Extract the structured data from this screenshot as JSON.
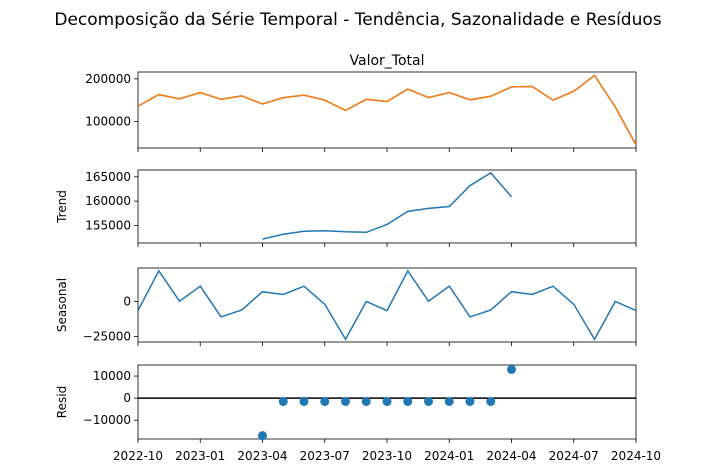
{
  "figure": {
    "title": "Decomposição da Série Temporal - Tendência, Sazonalidade e Resíduos"
  },
  "colors": {
    "observed_line": "#ff7f0e",
    "observed_line_under": "#1f77b4",
    "series": "#1f77b4",
    "zero_line": "#000000",
    "axes": "#000000"
  },
  "chart_data": [
    {
      "type": "line",
      "panel": "observed",
      "title": "Valor_Total",
      "ylabel": "",
      "x": [
        "2022-10",
        "2022-11",
        "2022-12",
        "2023-01",
        "2023-02",
        "2023-03",
        "2023-04",
        "2023-05",
        "2023-06",
        "2023-07",
        "2023-08",
        "2023-09",
        "2023-10",
        "2023-11",
        "2023-12",
        "2024-01",
        "2024-02",
        "2024-03",
        "2024-04",
        "2024-05",
        "2024-06",
        "2024-07",
        "2024-08",
        "2024-09",
        "2024-10"
      ],
      "values": [
        136000,
        163000,
        153000,
        168000,
        152000,
        160000,
        141000,
        156000,
        162000,
        150000,
        126000,
        152000,
        147000,
        176000,
        156000,
        168000,
        151000,
        159000,
        181000,
        182000,
        150000,
        171000,
        208000,
        134000,
        45000
      ],
      "ylim": [
        38000,
        216000
      ],
      "yticks": [
        100000,
        200000
      ],
      "ytick_labels": [
        "100000",
        "200000"
      ]
    },
    {
      "type": "line",
      "panel": "trend",
      "title": "",
      "ylabel": "Trend",
      "x": [
        "2023-04",
        "2023-05",
        "2023-06",
        "2023-07",
        "2023-08",
        "2023-09",
        "2023-10",
        "2023-11",
        "2023-12",
        "2024-01",
        "2024-02",
        "2024-03",
        "2024-04"
      ],
      "values": [
        152200,
        153200,
        153800,
        153900,
        153700,
        153600,
        155200,
        157900,
        158500,
        158900,
        163200,
        165800,
        160900
      ],
      "ylim": [
        151400,
        166400
      ],
      "yticks": [
        155000,
        160000,
        165000
      ],
      "ytick_labels": [
        "155000",
        "160000",
        "165000"
      ]
    },
    {
      "type": "line",
      "panel": "seasonal",
      "title": "",
      "ylabel": "Seasonal",
      "x": [
        "2022-10",
        "2022-11",
        "2022-12",
        "2023-01",
        "2023-02",
        "2023-03",
        "2023-04",
        "2023-05",
        "2023-06",
        "2023-07",
        "2023-08",
        "2023-09",
        "2023-10",
        "2023-11",
        "2023-12",
        "2024-01",
        "2024-02",
        "2024-03",
        "2024-04",
        "2024-05",
        "2024-06",
        "2024-07",
        "2024-08",
        "2024-09",
        "2024-10"
      ],
      "values": [
        -6500,
        22000,
        200,
        11000,
        -11000,
        -6000,
        7000,
        5000,
        11000,
        -2000,
        -27000,
        0,
        -6500,
        22000,
        200,
        11000,
        -11000,
        -6000,
        7000,
        5000,
        11000,
        -2000,
        -27000,
        0,
        -6500
      ],
      "ylim": [
        -29000,
        24000
      ],
      "yticks": [
        -25000,
        0
      ],
      "ytick_labels": [
        "−25000",
        "0"
      ]
    },
    {
      "type": "scatter",
      "panel": "resid",
      "title": "",
      "ylabel": "Resid",
      "x": [
        "2023-04",
        "2023-05",
        "2023-06",
        "2023-07",
        "2023-08",
        "2023-09",
        "2023-10",
        "2023-11",
        "2023-12",
        "2024-01",
        "2024-02",
        "2024-03",
        "2024-04"
      ],
      "values": [
        -17000,
        -1500,
        -1500,
        -1500,
        -1500,
        -1500,
        -1500,
        -1500,
        -1500,
        -1500,
        -1500,
        -1500,
        13000
      ],
      "reference_line": 0,
      "ylim": [
        -18500,
        15000
      ],
      "yticks": [
        -10000,
        0,
        10000
      ],
      "ytick_labels": [
        "−10000",
        "0",
        "10000"
      ],
      "xticks": [
        "2022-10",
        "2023-01",
        "2023-04",
        "2023-07",
        "2023-10",
        "2024-01",
        "2024-04",
        "2024-07",
        "2024-10"
      ],
      "xtick_labels": [
        "2022-10",
        "2023-01",
        "2023-04",
        "2023-07",
        "2023-10",
        "2024-01",
        "2024-04",
        "2024-07",
        "2024-10"
      ]
    }
  ]
}
